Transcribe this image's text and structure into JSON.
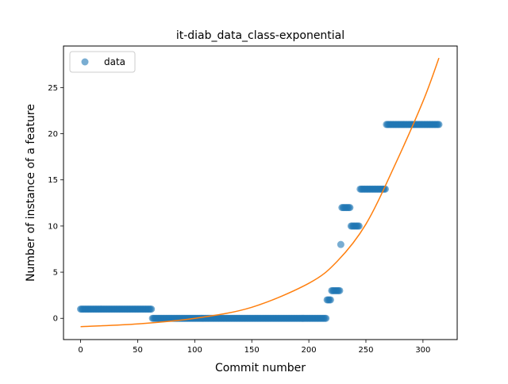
{
  "chart_data": {
    "type": "scatter",
    "title": "it-diab_data_class-exponential",
    "xlabel": "Commit number",
    "ylabel": "Number of instance of a feature",
    "xlim": [
      -15,
      330
    ],
    "ylim": [
      -2.3,
      29.5
    ],
    "xticks": [
      0,
      50,
      100,
      150,
      200,
      250,
      300
    ],
    "yticks": [
      0,
      5,
      10,
      15,
      20,
      25
    ],
    "grid": false,
    "legend": {
      "placement": "upper left",
      "entries": [
        {
          "label": "data",
          "marker": "circle",
          "color": "#1f77b4"
        }
      ]
    },
    "series": [
      {
        "name": "data",
        "kind": "scatter",
        "color": "#1f77b4",
        "alpha": 0.6,
        "segments": [
          {
            "x_start": 0,
            "x_end": 62,
            "y": 1
          },
          {
            "x_start": 63,
            "x_end": 215,
            "y": 0
          },
          {
            "x_start": 216,
            "x_end": 219,
            "y": 2
          },
          {
            "x_start": 220,
            "x_end": 227,
            "y": 3
          },
          {
            "x_start": 228,
            "x_end": 228,
            "y": 8
          },
          {
            "x_start": 229,
            "x_end": 236,
            "y": 12
          },
          {
            "x_start": 237,
            "x_end": 244,
            "y": 10
          },
          {
            "x_start": 245,
            "x_end": 267,
            "y": 14
          },
          {
            "x_start": 268,
            "x_end": 314,
            "y": 21
          }
        ]
      },
      {
        "name": "",
        "kind": "line",
        "color": "#ff7f0e",
        "x": [
          0,
          50,
          100,
          150,
          200,
          225,
          250,
          275,
          300,
          314
        ],
        "y": [
          -0.9,
          -0.6,
          0.0,
          1.2,
          3.8,
          6.2,
          10.2,
          16.5,
          23.5,
          28.2
        ]
      }
    ]
  }
}
